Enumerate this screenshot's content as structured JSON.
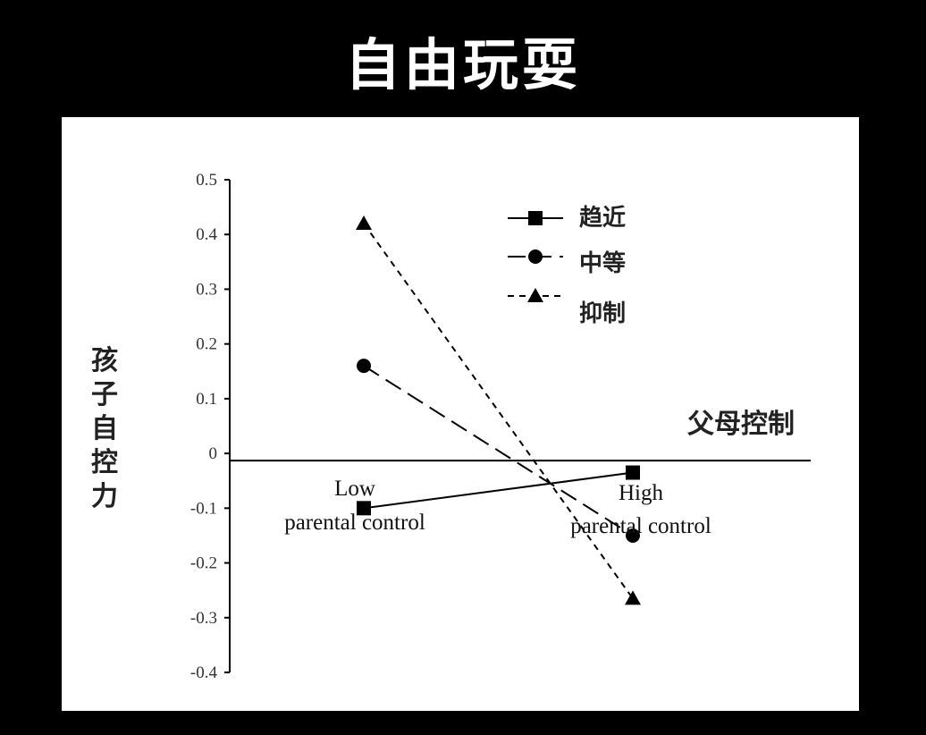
{
  "page": {
    "title": "自由玩耍"
  },
  "chart_data": {
    "type": "line",
    "title": "",
    "xlabel": "父母控制",
    "ylabel": "孩子自控力",
    "categories": [
      "Low\nparental control",
      "High\nparental control"
    ],
    "ylim": [
      -0.4,
      0.5
    ],
    "yticks": [
      0.5,
      0.4,
      0.3,
      0.2,
      0.1,
      0,
      -0.1,
      -0.2,
      -0.3,
      -0.4
    ],
    "ytick_labels": [
      "0.5",
      "0.4",
      "0.3",
      "0.2",
      "0.1",
      "0",
      "-0.1",
      "-0.2",
      "-0.3",
      "-0.4"
    ],
    "grid": false,
    "legend_position": "top-right",
    "series": [
      {
        "name": "趋近",
        "values": [
          -0.1,
          -0.035
        ],
        "marker": "square",
        "dash": "solid",
        "color": "#000000"
      },
      {
        "name": "中等",
        "values": [
          0.16,
          -0.15
        ],
        "marker": "circle",
        "dash": "long-dash",
        "color": "#000000"
      },
      {
        "name": "抑制",
        "values": [
          0.42,
          -0.265
        ],
        "marker": "triangle",
        "dash": "short-dash",
        "color": "#000000"
      }
    ]
  }
}
